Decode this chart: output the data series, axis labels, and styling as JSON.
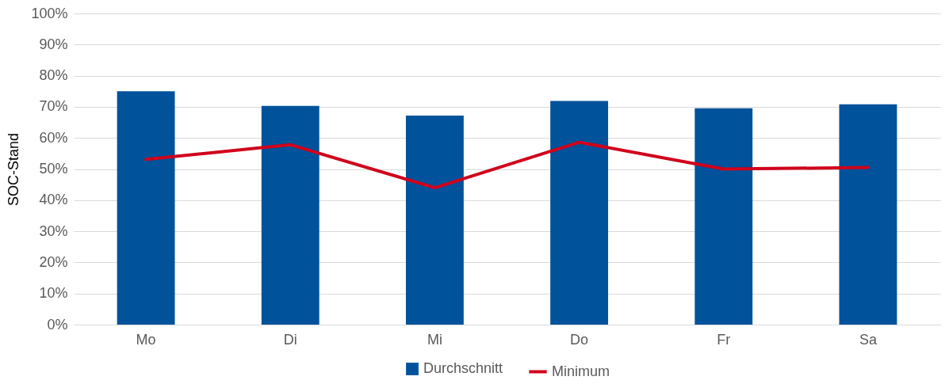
{
  "chart_data": {
    "type": "bar",
    "ylabel": "SOC-Stand",
    "categories": [
      "Mo",
      "Di",
      "Mi",
      "Do",
      "Fr",
      "Sa"
    ],
    "series": [
      {
        "name": "Durchschnitt",
        "color": "#00529b",
        "values": [
          75.0,
          70.3,
          67.2,
          71.9,
          69.5,
          70.8
        ]
      },
      {
        "name": "Minimum",
        "type": "line",
        "color": "#d0021b",
        "values": [
          53.1,
          57.8,
          44.0,
          58.6,
          50.0,
          50.5
        ]
      }
    ],
    "ylim": [
      0,
      100
    ],
    "yticks": [
      {
        "value": 0,
        "label": "0%"
      },
      {
        "value": 10,
        "label": "10%"
      },
      {
        "value": 20,
        "label": "20%"
      },
      {
        "value": 30,
        "label": "30%"
      },
      {
        "value": 40,
        "label": "40%"
      },
      {
        "value": 50,
        "label": "50%"
      },
      {
        "value": 60,
        "label": "60%"
      },
      {
        "value": 70,
        "label": "70%"
      },
      {
        "value": 80,
        "label": "80%"
      },
      {
        "value": 90,
        "label": "90%"
      },
      {
        "value": 100,
        "label": "100%"
      }
    ],
    "grid": "y",
    "legend": "bottom",
    "line_style": "solid",
    "marker": "none"
  }
}
